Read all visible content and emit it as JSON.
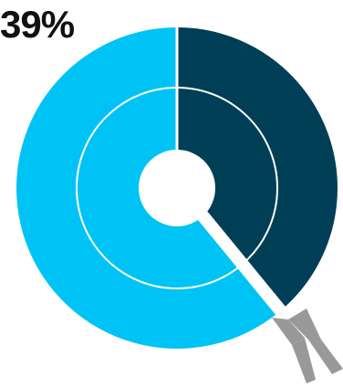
{
  "headline": "39%",
  "chart_data": {
    "type": "pie",
    "style": "donut-target",
    "title": "",
    "slices": [
      {
        "value": 39,
        "color": "#003F55"
      },
      {
        "value": 61,
        "color": "#00C3F5"
      }
    ],
    "dart_color": "#999999",
    "ring_color": "#ffffff",
    "legend": "none"
  }
}
